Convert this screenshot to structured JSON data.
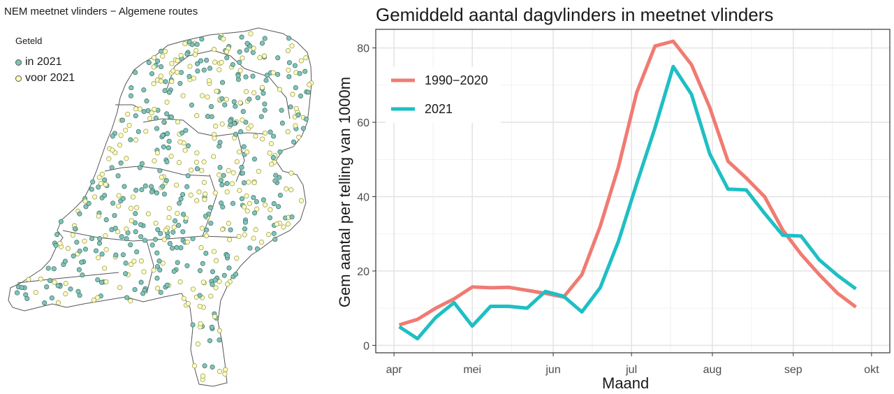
{
  "map": {
    "title": "NEM meetnet vlinders − Algemene routes",
    "legend_title": "Geteld",
    "legend": [
      {
        "label": "in 2021",
        "color": "#7fc4b8"
      },
      {
        "label": "voor 2021",
        "color": "#ffffbf"
      }
    ]
  },
  "chart_data": {
    "type": "line",
    "title": "Gemiddeld aantal dagvlinders in meetnet vlinders",
    "xlabel": "Maand",
    "ylabel": "Gem aantal per telling van 1000m",
    "x_ticks": [
      "apr",
      "mei",
      "jun",
      "jul",
      "aug",
      "sep",
      "okt"
    ],
    "y_ticks": [
      0,
      20,
      40,
      60,
      80
    ],
    "ylim": [
      -2,
      85
    ],
    "grid": true,
    "legend_position": "top-left",
    "series": [
      {
        "name": "1990−2020",
        "color": "#f07b72",
        "values": [
          [
            "2021-04-03",
            5.5
          ],
          [
            "2021-04-10",
            7.0
          ],
          [
            "2021-04-17",
            10.0
          ],
          [
            "2021-04-24",
            12.5
          ],
          [
            "2021-05-01",
            15.7
          ],
          [
            "2021-05-08",
            15.5
          ],
          [
            "2021-05-15",
            15.6
          ],
          [
            "2021-05-22",
            14.8
          ],
          [
            "2021-05-29",
            14.0
          ],
          [
            "2021-06-05",
            13.0
          ],
          [
            "2021-06-12",
            19.0
          ],
          [
            "2021-06-19",
            32.0
          ],
          [
            "2021-06-26",
            48.0
          ],
          [
            "2021-07-03",
            68.0
          ],
          [
            "2021-07-10",
            80.5
          ],
          [
            "2021-07-17",
            81.8
          ],
          [
            "2021-07-24",
            75.5
          ],
          [
            "2021-07-31",
            64.0
          ],
          [
            "2021-08-07",
            49.5
          ],
          [
            "2021-08-14",
            45.0
          ],
          [
            "2021-08-21",
            40.0
          ],
          [
            "2021-08-28",
            31.0
          ],
          [
            "2021-09-04",
            24.5
          ],
          [
            "2021-09-11",
            19.0
          ],
          [
            "2021-09-18",
            14.0
          ],
          [
            "2021-09-25",
            10.3
          ]
        ]
      },
      {
        "name": "2021",
        "color": "#1ebfc4",
        "values": [
          [
            "2021-04-03",
            5.0
          ],
          [
            "2021-04-10",
            1.8
          ],
          [
            "2021-04-17",
            7.5
          ],
          [
            "2021-04-24",
            11.5
          ],
          [
            "2021-05-01",
            5.2
          ],
          [
            "2021-05-08",
            10.5
          ],
          [
            "2021-05-15",
            10.5
          ],
          [
            "2021-05-22",
            10.0
          ],
          [
            "2021-05-29",
            14.5
          ],
          [
            "2021-06-05",
            13.2
          ],
          [
            "2021-06-12",
            9.0
          ],
          [
            "2021-06-19",
            15.5
          ],
          [
            "2021-06-26",
            28.0
          ],
          [
            "2021-07-03",
            43.5
          ],
          [
            "2021-07-10",
            58.5
          ],
          [
            "2021-07-17",
            75.0
          ],
          [
            "2021-07-24",
            67.5
          ],
          [
            "2021-07-31",
            51.5
          ],
          [
            "2021-08-07",
            42.0
          ],
          [
            "2021-08-14",
            41.8
          ],
          [
            "2021-08-21",
            35.5
          ],
          [
            "2021-08-28",
            29.6
          ],
          [
            "2021-09-04",
            29.4
          ],
          [
            "2021-09-11",
            23.0
          ],
          [
            "2021-09-18",
            18.8
          ],
          [
            "2021-09-25",
            15.2
          ]
        ]
      }
    ]
  }
}
